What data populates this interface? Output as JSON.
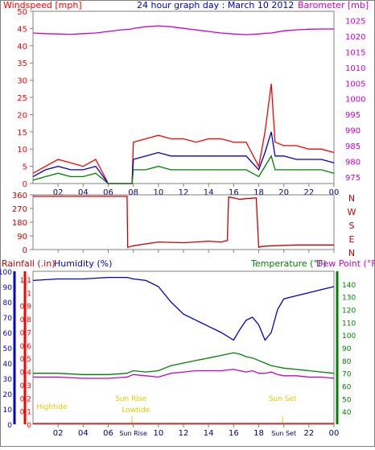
{
  "title": "24 hour graph day : March 10 2012",
  "colors": {
    "red": "#ff0000",
    "darkred": "#cc0000",
    "blue": "#0000cc",
    "green": "#008000",
    "magenta": "#cc00cc",
    "yellow": "#e6c800",
    "frame": "#808080"
  },
  "chart_data": [
    {
      "type": "line",
      "title": "24 hour graph day : March 10 2012",
      "ylabel": "Windspeed [mph]",
      "y2label": "Barometer [mb]",
      "ylim": [
        0,
        50
      ],
      "yticks": [
        "0",
        "5",
        "10",
        "15",
        "20",
        "25",
        "30",
        "35",
        "40",
        "45",
        "50"
      ],
      "y2lim": [
        975,
        1030
      ],
      "y2ticks": [
        "975",
        "980",
        "985",
        "990",
        "995",
        "1000",
        "1005",
        "1010",
        "1015",
        "1020",
        "1025",
        "1030"
      ],
      "xticks": [
        "02",
        "04",
        "06",
        "08",
        "10",
        "12",
        "14",
        "16",
        "18",
        "20",
        "22",
        "00"
      ],
      "x_hours": [
        0,
        1,
        2,
        3,
        4,
        5,
        6,
        7,
        7.9,
        8,
        9,
        10,
        11,
        12,
        13,
        14,
        15,
        16,
        17,
        18,
        18.5,
        19,
        19.3,
        20,
        21,
        22,
        23,
        24
      ],
      "series": [
        {
          "name": "gust",
          "color": "red",
          "values": [
            3,
            5,
            7,
            6,
            5,
            7,
            0,
            0,
            0,
            12,
            13,
            14,
            13,
            13,
            12,
            13,
            13,
            12,
            12,
            5,
            15,
            29,
            12,
            11,
            11,
            10,
            10,
            9
          ]
        },
        {
          "name": "speed",
          "color": "blue",
          "values": [
            2,
            4,
            5,
            4,
            4,
            5,
            0,
            0,
            0,
            7,
            8,
            9,
            8,
            8,
            8,
            8,
            8,
            8,
            8,
            4,
            9,
            15,
            8,
            8,
            7,
            7,
            7,
            6
          ]
        },
        {
          "name": "low",
          "color": "green",
          "values": [
            1,
            2,
            3,
            2,
            2,
            3,
            0,
            0,
            0,
            4,
            4,
            5,
            4,
            4,
            4,
            4,
            4,
            4,
            4,
            2,
            5,
            8,
            4,
            4,
            4,
            4,
            4,
            3
          ]
        },
        {
          "name": "barometer",
          "color": "magenta",
          "y_axis": "right",
          "values": [
            1021,
            1020.8,
            1020.7,
            1020.6,
            1020.8,
            1021,
            1021.5,
            1022,
            1022.3,
            1022.5,
            1023,
            1023.3,
            1023,
            1022.5,
            1022,
            1021.5,
            1021,
            1020.7,
            1020.5,
            1020.7,
            1020.9,
            1021,
            1021.2,
            1021.7,
            1022,
            1022.2,
            1022.3,
            1022.3
          ]
        }
      ]
    },
    {
      "type": "line",
      "ylabel": "Wind direction",
      "ylim": [
        0,
        360
      ],
      "yticks": [
        "0",
        "90",
        "180",
        "270",
        "360"
      ],
      "compass": [
        "N",
        "W",
        "S",
        "E",
        "N"
      ],
      "xticks": [
        "02",
        "04",
        "06",
        "08",
        "10",
        "12",
        "14",
        "16",
        "18",
        "20",
        "22",
        "00"
      ],
      "x_hours": [
        0,
        2,
        5,
        7.5,
        7.55,
        8,
        10,
        12,
        14,
        15,
        15.5,
        15.6,
        16,
        16.5,
        17,
        17.8,
        18,
        18.2,
        19,
        21,
        24
      ],
      "series": [
        {
          "name": "direction",
          "color": "darkred",
          "values": [
            350,
            350,
            350,
            350,
            15,
            25,
            50,
            45,
            55,
            50,
            60,
            345,
            340,
            330,
            335,
            340,
            15,
            20,
            25,
            30,
            30
          ]
        }
      ]
    },
    {
      "type": "line",
      "ylabel": "Humidity (%)",
      "left_label_rain": "Rainfall (.in)",
      "y_rain_ticks": [
        "0",
        "0.1",
        "0.2",
        "0.3",
        "0.4",
        "0.5",
        "0.6",
        "0.7",
        "0.8",
        "0.9",
        "1",
        "1.1"
      ],
      "y_hum_ticks": [
        "0",
        "10",
        "20",
        "30",
        "40",
        "50",
        "60",
        "70",
        "80",
        "90",
        "100"
      ],
      "ylim": [
        0,
        100
      ],
      "y2label_temp": "Temperature (°F)",
      "y2label_dew": "Dew Point (°F)",
      "y2lim": [
        30,
        150
      ],
      "y2ticks": [
        "40",
        "50",
        "60",
        "70",
        "80",
        "90",
        "100",
        "110",
        "120",
        "130",
        "140"
      ],
      "xticks": [
        "02",
        "04",
        "06",
        "08",
        "10",
        "12",
        "14",
        "16",
        "18",
        "20",
        "22",
        "00"
      ],
      "xtick_special": [
        "Sun Rise",
        "Sun Set"
      ],
      "annotations": [
        "Hightide",
        "Sun Rise",
        "Lowtide",
        "Sun Set"
      ],
      "x_hours": [
        0,
        2,
        4,
        6,
        7.5,
        8,
        9,
        10,
        11,
        12,
        13,
        14,
        15,
        16,
        16.5,
        17,
        17.5,
        18,
        18.5,
        19,
        19.5,
        20,
        21,
        22,
        23,
        24
      ],
      "series": [
        {
          "name": "humidity",
          "color": "blue",
          "values": [
            94,
            95,
            95,
            96,
            96,
            95,
            94,
            90,
            80,
            72,
            68,
            64,
            60,
            55,
            62,
            68,
            70,
            65,
            55,
            60,
            75,
            82,
            84,
            86,
            88,
            90
          ]
        },
        {
          "name": "temperature",
          "color": "green",
          "y_axis": "right",
          "values": [
            70,
            70,
            69,
            69,
            70,
            72,
            71,
            72,
            76,
            78,
            80,
            82,
            84,
            86,
            85,
            83,
            82,
            80,
            78,
            76,
            75,
            74,
            73,
            72,
            71,
            70
          ]
        },
        {
          "name": "dewpoint",
          "color": "magenta",
          "y_axis": "right",
          "values": [
            67,
            67,
            66,
            66,
            67,
            69,
            68,
            67,
            70,
            71,
            72,
            72,
            72,
            73,
            72,
            71,
            72,
            70,
            70,
            71,
            69,
            68,
            68,
            67,
            67,
            66
          ]
        },
        {
          "name": "rainfall",
          "color": "red",
          "values": [
            0,
            0,
            0,
            0,
            0,
            0,
            0,
            0,
            0,
            0,
            0,
            0,
            0,
            0,
            0,
            0,
            0,
            0,
            0,
            0,
            0,
            0,
            0,
            0,
            0,
            0
          ]
        }
      ]
    }
  ]
}
